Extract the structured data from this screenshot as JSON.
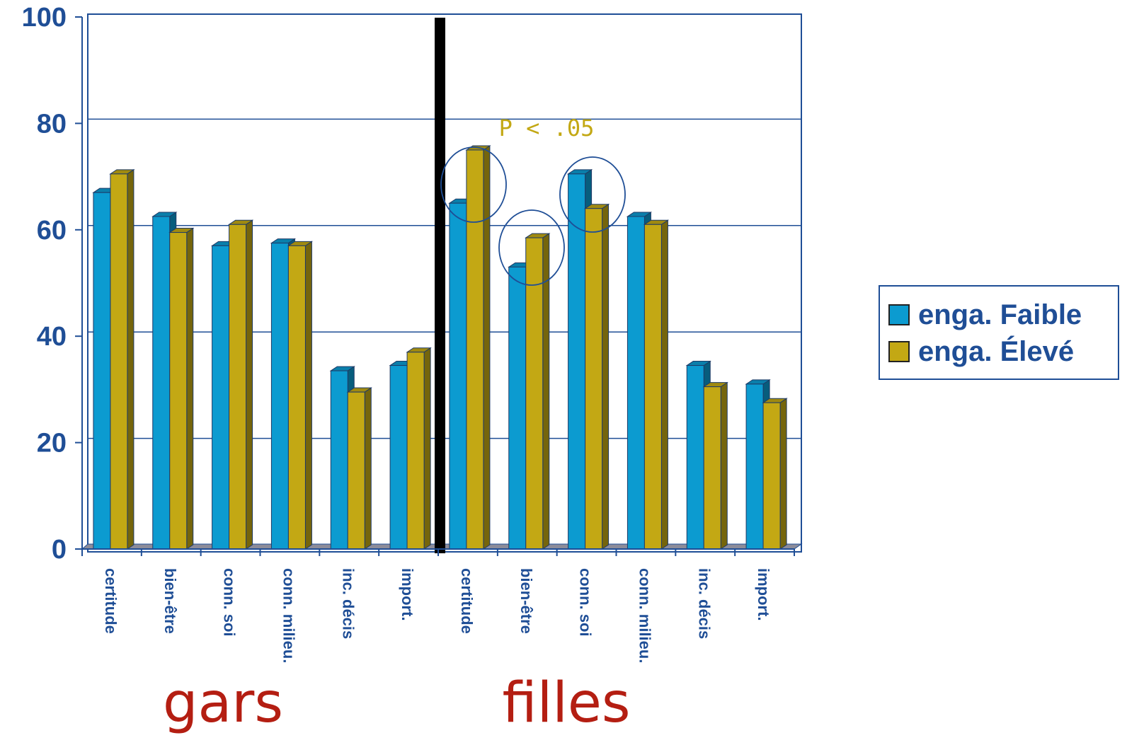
{
  "chart_data": {
    "type": "bar",
    "categories": [
      "certitude",
      "bien-être",
      "conn. soi",
      "conn. milieu.",
      "inc. décis",
      "import.",
      "certitude",
      "bien-être",
      "conn. soi",
      "conn. milieu.",
      "inc. décis",
      "import."
    ],
    "series": [
      {
        "name": "enga. Faible",
        "color": "#0c9bd0",
        "values": [
          67,
          62.5,
          57,
          57.5,
          33.5,
          34.5,
          65,
          53,
          70.5,
          62.5,
          34.5,
          31
        ]
      },
      {
        "name": "enga. Élevé",
        "color": "#c3a814",
        "values": [
          70.5,
          59.5,
          61,
          57,
          29.5,
          37,
          75,
          58.5,
          64,
          61,
          30.5,
          27.5
        ]
      }
    ],
    "ylim": [
      0,
      100
    ],
    "yticks": [
      "0",
      "20",
      "40",
      "60",
      "80",
      "100"
    ],
    "grid": true,
    "legend_position": "right",
    "groups": [
      {
        "label": "gars",
        "categories": [
          0,
          5
        ]
      },
      {
        "label": "filles",
        "categories": [
          6,
          11
        ]
      }
    ],
    "annotations": [
      {
        "text": "P < .05"
      }
    ],
    "highlighted_categories": [
      6,
      7,
      8
    ]
  },
  "legend": {
    "faible_label": "enga. Faible",
    "eleve_label": "enga. Élevé"
  }
}
